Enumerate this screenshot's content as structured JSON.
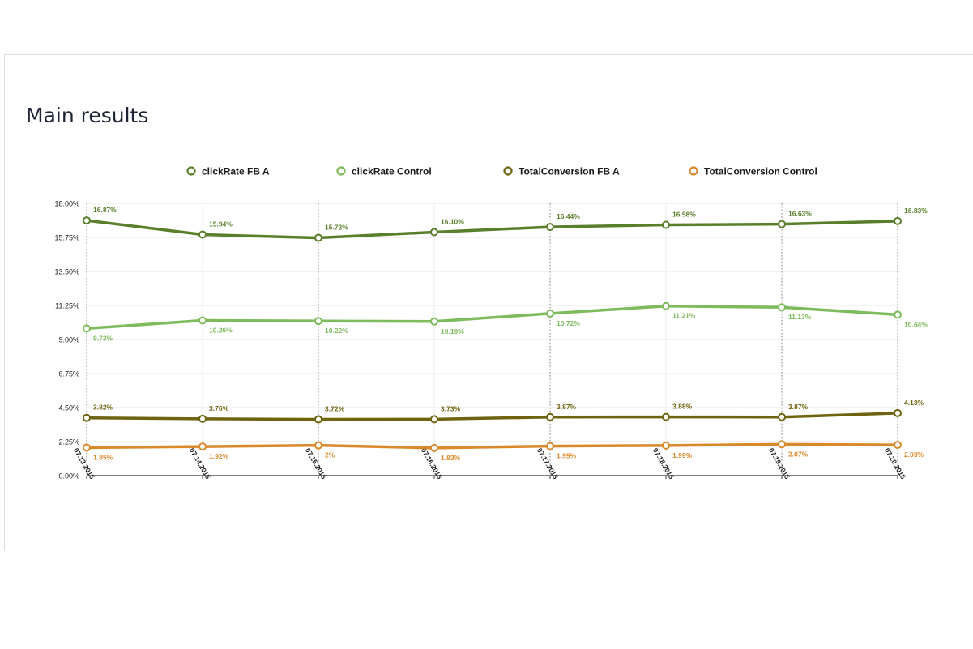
{
  "page": {
    "title": "Main results"
  },
  "chart_data": {
    "type": "line",
    "x": [
      "07.13.2015",
      "07.14.2015",
      "07.15.2015",
      "07.16.2015",
      "07.17.2015",
      "07.18.2015",
      "07.19.2015",
      "07.20.2015"
    ],
    "ylim": [
      0,
      18
    ],
    "yticks": [
      "0.00%",
      "2.25%",
      "4.50%",
      "6.75%",
      "9.00%",
      "11.25%",
      "13.50%",
      "15.75%",
      "18.00%"
    ],
    "legend_position": "top",
    "grid": true,
    "series": [
      {
        "name": "clickRate FB A",
        "color": "#5a7f2b",
        "label_pos": "above",
        "values": [
          16.87,
          15.94,
          15.72,
          16.1,
          16.44,
          16.58,
          16.63,
          16.83
        ],
        "labels": [
          "16.87%",
          "15.94%",
          "15.72%",
          "16.10%",
          "16.44%",
          "16.58%",
          "16.63%",
          "16.83%"
        ]
      },
      {
        "name": "clickRate Control",
        "color": "#7dbb5c",
        "label_pos": "below",
        "values": [
          9.73,
          10.26,
          10.22,
          10.19,
          10.72,
          11.21,
          11.13,
          10.64
        ],
        "labels": [
          "9.73%",
          "10.26%",
          "10.22%",
          "10.19%",
          "10.72%",
          "11.21%",
          "11.13%",
          "10.64%"
        ]
      },
      {
        "name": "TotalConversion FB A",
        "color": "#6e6410",
        "label_pos": "above",
        "values": [
          3.82,
          3.76,
          3.72,
          3.73,
          3.87,
          3.88,
          3.87,
          4.13
        ],
        "labels": [
          "3.82%",
          "3.76%",
          "3.72%",
          "3.73%",
          "3.87%",
          "3.88%",
          "3.87%",
          "4.13%"
        ]
      },
      {
        "name": "TotalConversion Control",
        "color": "#d9892a",
        "label_pos": "below",
        "values": [
          1.85,
          1.92,
          2.0,
          1.83,
          1.95,
          1.99,
          2.07,
          2.03
        ],
        "labels": [
          "1.85%",
          "1.92%",
          "2%",
          "1.83%",
          "1.95%",
          "1.99%",
          "2.07%",
          "2.03%"
        ]
      }
    ]
  }
}
